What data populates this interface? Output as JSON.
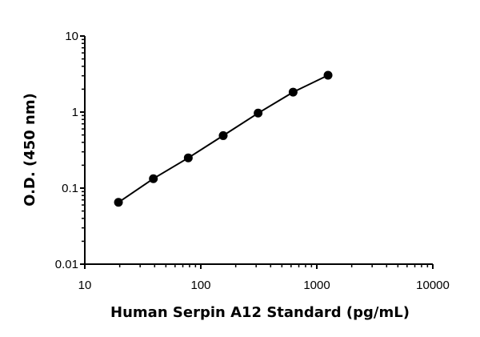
{
  "chart_data": {
    "type": "scatter",
    "xlabel": "Human Serpin A12 Standard (pg/mL)",
    "ylabel": "O.D. (450 nm)",
    "x_scale": "log",
    "y_scale": "log",
    "xlim": [
      10,
      10000
    ],
    "ylim": [
      0.01,
      10
    ],
    "x_tick_labels": [
      "10",
      "100",
      "1000",
      "10000"
    ],
    "y_tick_labels": [
      "0.01",
      "0.1",
      "1",
      "10"
    ],
    "series": [
      {
        "points": [
          {
            "x": 19.5,
            "y": 0.065
          },
          {
            "x": 39,
            "y": 0.133
          },
          {
            "x": 78,
            "y": 0.25
          },
          {
            "x": 156,
            "y": 0.49
          },
          {
            "x": 312,
            "y": 0.97
          },
          {
            "x": 625,
            "y": 1.83
          },
          {
            "x": 1250,
            "y": 3.05
          }
        ],
        "fit_line": true,
        "color": "#000000"
      }
    ],
    "grid": false,
    "legend": "none"
  }
}
